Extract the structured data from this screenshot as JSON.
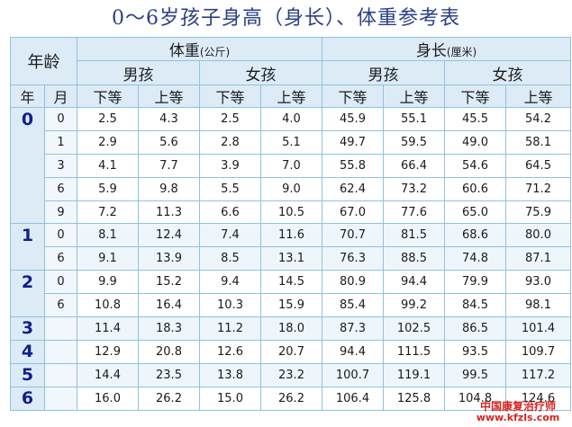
{
  "title": "0～6岁孩子身高（身长）、体重参考表",
  "header": {
    "age": "年龄",
    "weight": "体重",
    "weight_unit": "(公斤)",
    "height": "身长",
    "height_unit": "(厘米)",
    "boy": "男孩",
    "girl": "女孩",
    "lower": "下等",
    "upper": "上等",
    "year": "年",
    "month": "月"
  },
  "rows": [
    {
      "year": "0",
      "month": "0",
      "v": [
        "2.5",
        "4.3",
        "2.5",
        "4.0",
        "45.9",
        "55.1",
        "45.5",
        "54.2"
      ]
    },
    {
      "year": "",
      "month": "1",
      "v": [
        "2.9",
        "5.6",
        "2.8",
        "5.1",
        "49.7",
        "59.5",
        "49.0",
        "58.1"
      ]
    },
    {
      "year": "",
      "month": "3",
      "v": [
        "4.1",
        "7.7",
        "3.9",
        "7.0",
        "55.8",
        "66.4",
        "54.6",
        "64.5"
      ]
    },
    {
      "year": "",
      "month": "6",
      "v": [
        "5.9",
        "9.8",
        "5.5",
        "9.0",
        "62.4",
        "73.2",
        "60.6",
        "71.2"
      ]
    },
    {
      "year": "",
      "month": "9",
      "v": [
        "7.2",
        "11.3",
        "6.6",
        "10.5",
        "67.0",
        "77.6",
        "65.0",
        "75.9"
      ]
    },
    {
      "year": "1",
      "month": "0",
      "v": [
        "8.1",
        "12.4",
        "7.4",
        "11.6",
        "70.7",
        "81.5",
        "68.6",
        "80.0"
      ]
    },
    {
      "year": "",
      "month": "6",
      "v": [
        "9.1",
        "13.9",
        "8.5",
        "13.1",
        "76.3",
        "88.5",
        "74.8",
        "87.1"
      ]
    },
    {
      "year": "2",
      "month": "0",
      "v": [
        "9.9",
        "15.2",
        "9.4",
        "14.5",
        "80.9",
        "94.4",
        "79.9",
        "93.0"
      ]
    },
    {
      "year": "",
      "month": "6",
      "v": [
        "10.8",
        "16.4",
        "10.3",
        "15.9",
        "85.4",
        "99.2",
        "84.5",
        "98.1"
      ]
    },
    {
      "year": "3",
      "month": "",
      "v": [
        "11.4",
        "18.3",
        "11.2",
        "18.0",
        "87.3",
        "102.5",
        "86.5",
        "101.4"
      ]
    },
    {
      "year": "4",
      "month": "",
      "v": [
        "12.9",
        "20.8",
        "12.6",
        "20.7",
        "94.4",
        "111.5",
        "93.5",
        "109.7"
      ]
    },
    {
      "year": "5",
      "month": "",
      "v": [
        "14.4",
        "23.5",
        "13.8",
        "23.2",
        "100.7",
        "119.1",
        "99.5",
        "117.2"
      ]
    },
    {
      "year": "6",
      "month": "",
      "v": [
        "16.0",
        "26.2",
        "15.0",
        "26.2",
        "106.4",
        "125.8",
        "104.8",
        "124.6"
      ]
    }
  ],
  "watermark": {
    "text": "中国康复治疗师",
    "url": "www.kfzls.com"
  },
  "colors": {
    "title": "#2b3f86",
    "year_text": "#10208a",
    "border": "#8ec3de",
    "header_bg": "#dcebf6",
    "watermark": "#d6231d"
  }
}
